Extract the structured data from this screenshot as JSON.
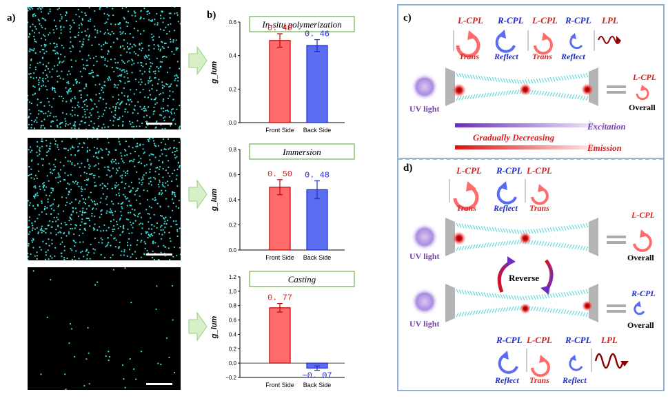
{
  "panels": {
    "a": "a)",
    "b": "b)",
    "c": "c)",
    "d": "d)"
  },
  "micrographs": [
    {
      "dots": 900,
      "seed": 11
    },
    {
      "dots": 900,
      "seed": 23
    },
    {
      "dots": 40,
      "seed": 37
    }
  ],
  "chart_data": [
    {
      "type": "bar",
      "title": "In-situ polymerization",
      "categories": [
        "Front Side",
        "Back Side"
      ],
      "values": [
        0.49,
        0.46
      ],
      "errors": [
        0.04,
        0.035
      ],
      "value_labels": [
        "0. 49",
        "0. 46"
      ],
      "ylabel": "g_lum",
      "ylim": [
        0,
        0.6
      ],
      "yticks": [
        "0.0",
        "0.2",
        "0.4",
        "0.6"
      ],
      "ytick_values": [
        0,
        0.2,
        0.4,
        0.6
      ],
      "colors": [
        "#ff6b6b",
        "#5a6cf0"
      ],
      "label_colors": [
        "#d81e1e",
        "#1a2bc8"
      ]
    },
    {
      "type": "bar",
      "title": "Immersion",
      "categories": [
        "Front Side",
        "Back Side"
      ],
      "values": [
        0.5,
        0.48
      ],
      "errors": [
        0.06,
        0.07
      ],
      "value_labels": [
        "0. 50",
        "0. 48"
      ],
      "ylabel": "g_lum",
      "ylim": [
        0,
        0.8
      ],
      "yticks": [
        "0.0",
        "0.2",
        "0.4",
        "0.6",
        "0.8"
      ],
      "ytick_values": [
        0,
        0.2,
        0.4,
        0.6,
        0.8
      ],
      "colors": [
        "#ff6b6b",
        "#5a6cf0"
      ],
      "label_colors": [
        "#d81e1e",
        "#1a2bc8"
      ]
    },
    {
      "type": "bar",
      "title": "Casting",
      "categories": [
        "Front Side",
        "Back Side"
      ],
      "values": [
        0.77,
        -0.07
      ],
      "errors": [
        0.06,
        0.03
      ],
      "value_labels": [
        "0. 77",
        "−0. 07"
      ],
      "ylabel": "g_lum",
      "ylim": [
        -0.2,
        1.2
      ],
      "yticks": [
        "−0.2",
        "0.0",
        "0.2",
        "0.4",
        "0.6",
        "0.8",
        "1.0",
        "1.2"
      ],
      "ytick_values": [
        -0.2,
        0,
        0.2,
        0.4,
        0.6,
        0.8,
        1.0,
        1.2
      ],
      "colors": [
        "#ff6b6b",
        "#5a6cf0"
      ],
      "label_colors": [
        "#d81e1e",
        "#1a2bc8"
      ]
    }
  ],
  "panel_c": {
    "labels": [
      {
        "text": "L-CPL",
        "color": "#d81e1e"
      },
      {
        "text": "R-CPL",
        "color": "#1a2bc8"
      },
      {
        "text": "L-CPL",
        "color": "#d81e1e"
      },
      {
        "text": "R-CPL",
        "color": "#1a2bc8"
      },
      {
        "text": "LPL",
        "color": "#d81e1e"
      }
    ],
    "sublabels": [
      {
        "text": "Trans",
        "color": "#d81e1e"
      },
      {
        "text": "Reflect",
        "color": "#1a2bc8"
      },
      {
        "text": "Trans",
        "color": "#d81e1e"
      },
      {
        "text": "Reflect",
        "color": "#1a2bc8"
      }
    ],
    "uv_label": "UV light",
    "result_label": "L-CPL",
    "overall": "Overall",
    "excitation": "Excitation",
    "gradually": "Gradually Decreasing",
    "emission": "Emission"
  },
  "panel_d": {
    "top_labels": [
      {
        "text": "L-CPL",
        "color": "#d81e1e"
      },
      {
        "text": "R-CPL",
        "color": "#1a2bc8"
      },
      {
        "text": "L-CPL",
        "color": "#d81e1e"
      }
    ],
    "top_sublabels": [
      {
        "text": "Trans",
        "color": "#d81e1e"
      },
      {
        "text": "Reflect",
        "color": "#1a2bc8"
      },
      {
        "text": "Trans",
        "color": "#d81e1e"
      }
    ],
    "uv_label": "UV light",
    "result1": "L-CPL",
    "result2": "R-CPL",
    "overall": "Overall",
    "reverse": "Reverse",
    "bottom_labels": [
      {
        "text": "R-CPL",
        "color": "#1a2bc8"
      },
      {
        "text": "L-CPL",
        "color": "#d81e1e"
      },
      {
        "text": "R-CPL",
        "color": "#1a2bc8"
      },
      {
        "text": "LPL",
        "color": "#d81e1e"
      }
    ],
    "bottom_sublabels": [
      {
        "text": "Reflect",
        "color": "#1a2bc8"
      },
      {
        "text": "Trans",
        "color": "#d81e1e"
      },
      {
        "text": "Reflect",
        "color": "#1a2bc8"
      }
    ]
  }
}
